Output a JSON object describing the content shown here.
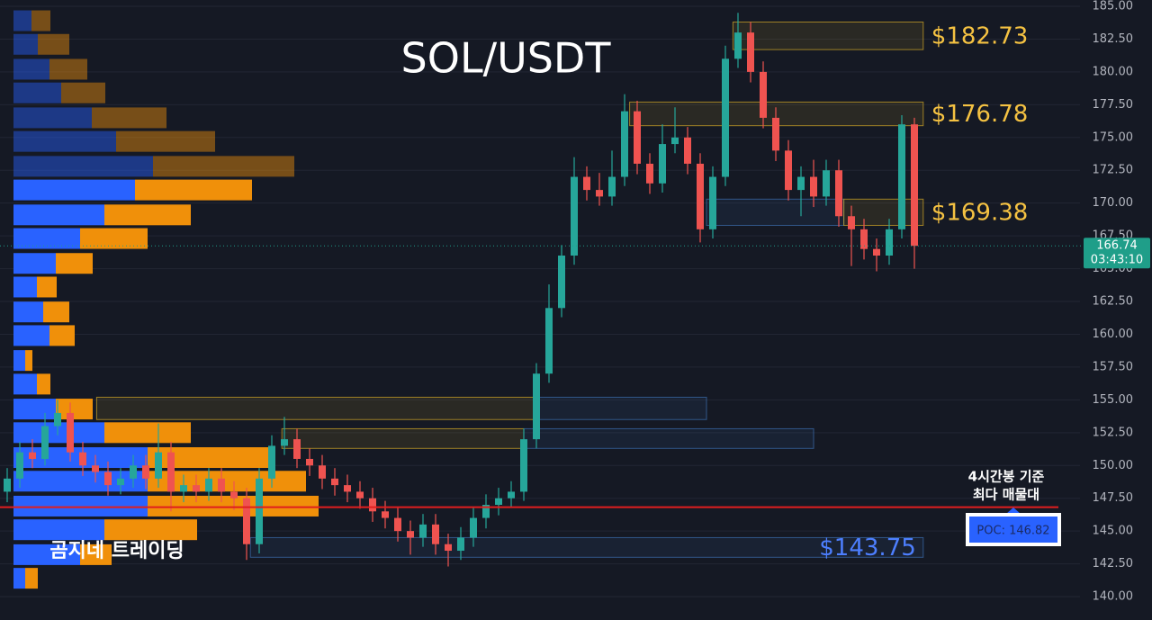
{
  "chart_data": {
    "type": "candlestick",
    "title": "SOL/USDT",
    "watermark": "곰지네 트레이딩",
    "open": [
      148,
      149,
      151,
      150.5,
      153,
      154,
      151,
      150,
      149.5,
      148.5,
      149,
      150,
      149,
      151,
      148,
      148.5,
      148,
      149,
      148,
      147.5,
      144,
      149,
      151.5,
      152,
      150.5,
      150,
      149,
      148.5,
      148,
      147.5,
      146.5,
      146,
      145,
      144.5,
      145.5,
      144,
      143.5,
      144.5,
      146,
      147,
      147.5,
      148,
      152,
      157,
      162,
      166,
      172,
      171,
      170.5,
      172,
      177,
      173,
      171.5,
      174.5,
      175,
      173,
      168,
      172,
      181,
      183,
      180,
      176.5,
      174,
      171,
      172,
      170.5,
      172.5,
      169,
      168,
      166.5,
      166,
      168,
      176
    ],
    "high": [
      149.8,
      151.8,
      152,
      154,
      155,
      154.8,
      151.8,
      150.8,
      150.3,
      149.8,
      150.8,
      150.8,
      153.2,
      151.8,
      149.3,
      149.3,
      149.8,
      149.8,
      148.8,
      148.3,
      149.8,
      152.3,
      153.7,
      152.8,
      151.3,
      150.8,
      149.8,
      149.3,
      148.8,
      148.3,
      147.3,
      146.8,
      145.8,
      146.3,
      146.3,
      144.8,
      145.3,
      146.8,
      147.8,
      148.3,
      148.8,
      152.8,
      157.8,
      163.8,
      166.8,
      173.5,
      172.8,
      172.3,
      174,
      178.3,
      177.8,
      173.8,
      176,
      177.3,
      175.8,
      173.8,
      172.8,
      182,
      184.5,
      183.8,
      180.8,
      177.3,
      174.8,
      172.8,
      173.3,
      173.3,
      173.3,
      169.8,
      168.8,
      167.3,
      168.8,
      176.7,
      176.5
    ],
    "low": [
      147.2,
      148.3,
      149.8,
      150,
      152.3,
      150.3,
      149.2,
      148.7,
      147.7,
      147.8,
      148.3,
      148.2,
      148.3,
      146.5,
      147.2,
      147.2,
      147.3,
      147.2,
      146.6,
      142.8,
      143.3,
      148.3,
      150.8,
      149.8,
      149.2,
      148.2,
      147.7,
      147.2,
      146.7,
      145.7,
      145.2,
      144.2,
      143.2,
      143.8,
      143.2,
      142.3,
      142.8,
      143.8,
      145.2,
      146.2,
      146.8,
      147.3,
      151.3,
      156.3,
      161.3,
      165.3,
      170.2,
      169.8,
      169.8,
      171.3,
      172.2,
      170.7,
      170.8,
      173.8,
      172.2,
      167,
      167.3,
      171.3,
      180.3,
      179.2,
      175.7,
      173.2,
      170.2,
      169,
      169.7,
      169.8,
      168.2,
      165.2,
      165.7,
      164.8,
      165.3,
      167.3,
      165
    ],
    "close": [
      149,
      151,
      150.5,
      153,
      154,
      151,
      150,
      149.5,
      148.5,
      149,
      150,
      149,
      151,
      148,
      148.5,
      148,
      149,
      148,
      147.5,
      144,
      149,
      151.5,
      152,
      150.5,
      150,
      149,
      148.5,
      148,
      147.5,
      146.5,
      146,
      145,
      144.5,
      145.5,
      144,
      143.5,
      144.5,
      146,
      147,
      147.5,
      148,
      152,
      157,
      162,
      166,
      172,
      171,
      170.5,
      172,
      177,
      173,
      171.5,
      174.5,
      175,
      173,
      168,
      172,
      181,
      183,
      180,
      176.5,
      174,
      171,
      172,
      170.5,
      172.5,
      169,
      168,
      166.5,
      166,
      168,
      176,
      166.74
    ],
    "up_color": "#26a69a",
    "down_color": "#ef5350",
    "ylim": [
      138.22,
      185.48
    ],
    "yticks": [
      {
        "value": 140,
        "label": "140.00"
      },
      {
        "value": 142.5,
        "label": "142.50"
      },
      {
        "value": 145,
        "label": "145.00"
      },
      {
        "value": 147.5,
        "label": "147.50"
      },
      {
        "value": 150,
        "label": "150.00"
      },
      {
        "value": 152.5,
        "label": "152.50"
      },
      {
        "value": 155,
        "label": "155.00"
      },
      {
        "value": 157.5,
        "label": "157.50"
      },
      {
        "value": 160,
        "label": "160.00"
      },
      {
        "value": 162.5,
        "label": "162.50"
      },
      {
        "value": 165,
        "label": "165.00"
      },
      {
        "value": 167.5,
        "label": "167.50"
      },
      {
        "value": 170,
        "label": "170.00"
      },
      {
        "value": 172.5,
        "label": "172.50"
      },
      {
        "value": 175,
        "label": "175.00"
      },
      {
        "value": 177.5,
        "label": "177.50"
      },
      {
        "value": 180,
        "label": "180.00"
      },
      {
        "value": 182.5,
        "label": "182.50"
      },
      {
        "value": 185,
        "label": "185.00"
      }
    ],
    "grid": true,
    "current_price": 166.74,
    "countdown": "03:43:10",
    "current_color": "#1f9e89",
    "poc": {
      "value": 146.82,
      "label": "POC: 146.82"
    },
    "poc_color": "#e01e1e",
    "poc_note": [
      "4시간봉 기준",
      "최다 매물대"
    ],
    "profile": {
      "levels": [
        183.9,
        182.1,
        180.2,
        178.4,
        176.5,
        174.7,
        172.8,
        171.0,
        169.1,
        167.3,
        165.4,
        163.6,
        161.7,
        159.9,
        158.0,
        156.2,
        154.3,
        152.5,
        150.6,
        148.8,
        146.9,
        145.1,
        143.2,
        141.4
      ],
      "buy": [
        20,
        27,
        40,
        53,
        87,
        114,
        155,
        135,
        101,
        74,
        47,
        26,
        33,
        40,
        13,
        26,
        47,
        101,
        149,
        149,
        149,
        101,
        74,
        13
      ],
      "sell": [
        21,
        35,
        42,
        49,
        83,
        110,
        157,
        130,
        96,
        75,
        41,
        22,
        29,
        28,
        8,
        15,
        41,
        96,
        136,
        176,
        190,
        103,
        35,
        14
      ],
      "buy_color": "#2962ff",
      "sell_color": "#f0900a",
      "value_area_high": 172.5
    },
    "zones": [
      {
        "from": 57.6,
        "to": 72.7,
        "low": 181.7,
        "high": 183.8,
        "color": "#c9a227",
        "label": "$182.73"
      },
      {
        "from": 49.4,
        "to": 72.7,
        "low": 175.9,
        "high": 177.7,
        "color": "#c9a227",
        "label": "$176.78"
      },
      {
        "from": 55.5,
        "to": 66.4,
        "low": 168.3,
        "high": 170.3,
        "color": "#3a6aa8"
      },
      {
        "from": 66.4,
        "to": 72.7,
        "low": 168.3,
        "high": 170.3,
        "color": "#c9a227",
        "label": "$169.38"
      },
      {
        "from": 7.1,
        "to": 41.8,
        "low": 153.5,
        "high": 155.2,
        "color": "#c9a227"
      },
      {
        "from": 41.8,
        "to": 55.5,
        "low": 153.5,
        "high": 155.2,
        "color": "#3a6aa8"
      },
      {
        "from": 21.8,
        "to": 41,
        "low": 151.3,
        "high": 152.8,
        "color": "#c9a227"
      },
      {
        "from": 41,
        "to": 64,
        "low": 151.3,
        "high": 152.8,
        "color": "#3a6aa8"
      },
      {
        "from": 19.3,
        "to": 72.7,
        "low": 143.0,
        "high": 144.5,
        "color": "#3a6aa8",
        "label": "$143.75",
        "label_position": "inside"
      }
    ]
  }
}
